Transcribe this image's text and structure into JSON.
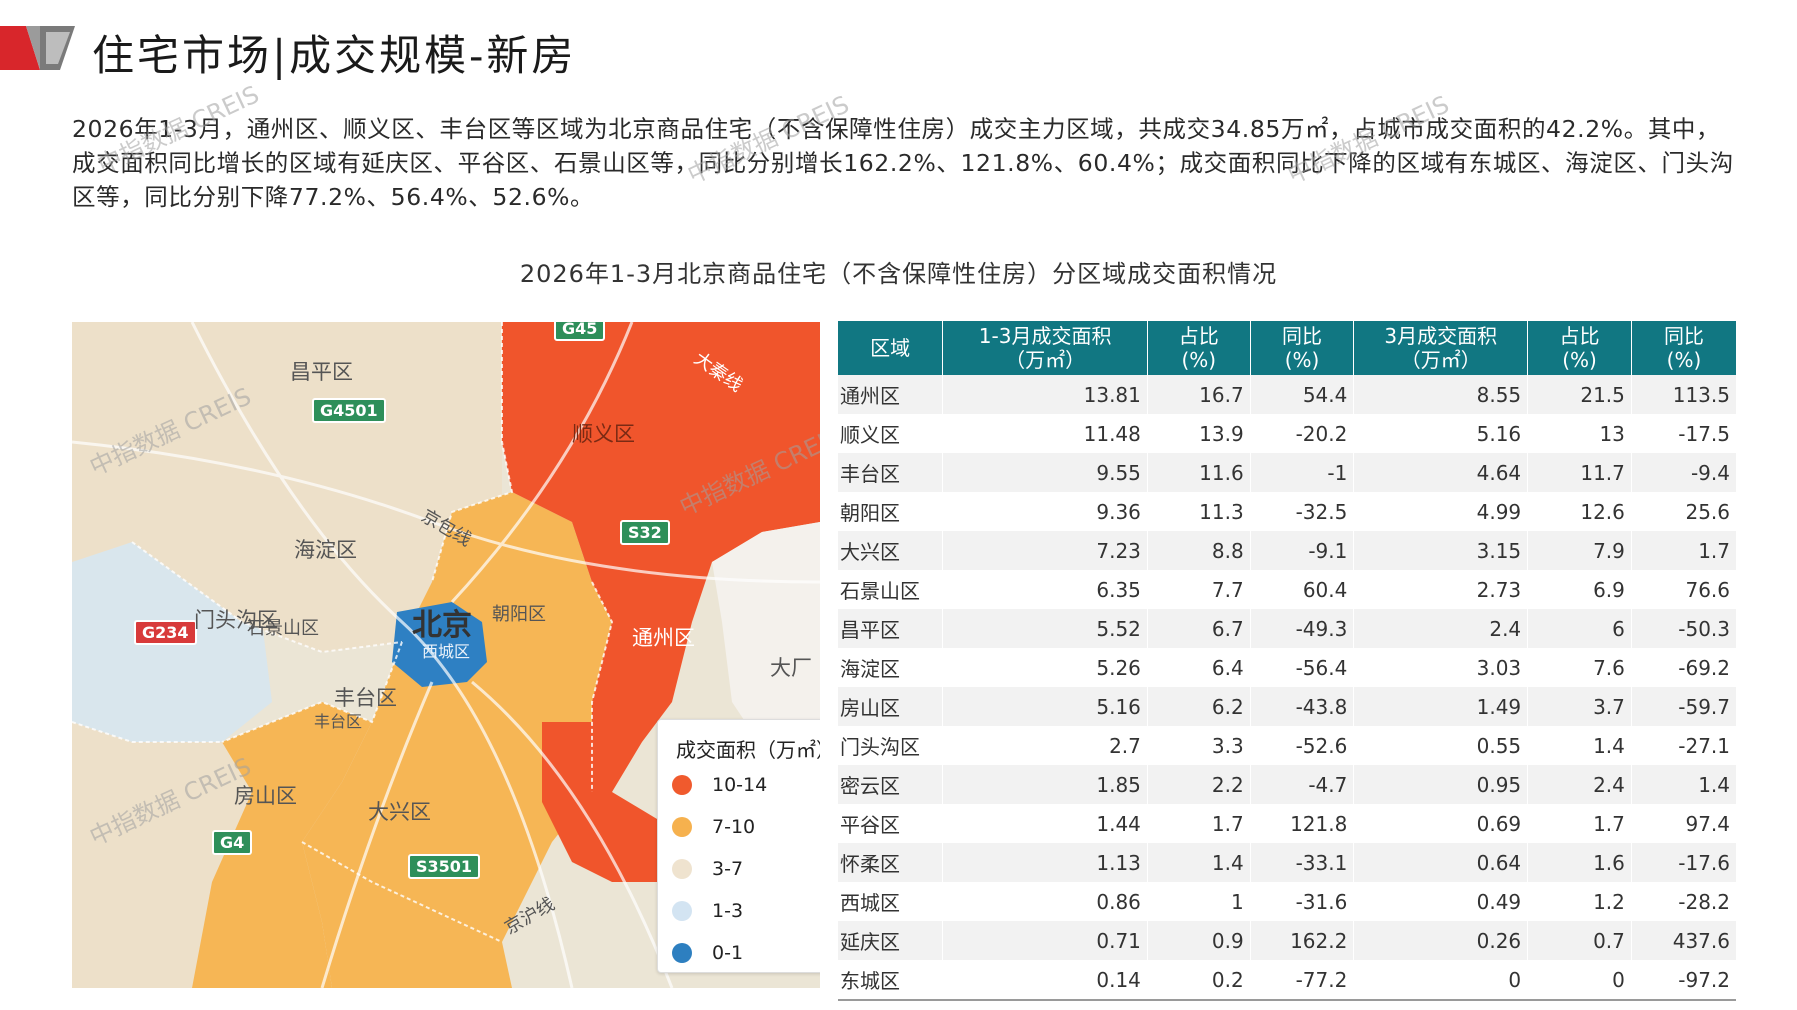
{
  "header": {
    "title": "住宅市场|成交规模-新房"
  },
  "summary": "2026年1-3月，通州区、顺义区、丰台区等区域为北京商品住宅（不含保障性住房）成交主力区域，共成交34.85万㎡，占城市成交面积的42.2%。其中，成交面积同比增长的区域有延庆区、平谷区、石景山区等，同比分别增长162.2%、121.8%、60.4%；成交面积同比下降的区域有东城区、海淀区、门头沟区等，同比分别下降77.2%、56.4%、52.6%。",
  "chart_title": "2026年1-3月北京商品住宅（不含保障性住房）分区域成交面积情况",
  "watermark": "中指数据 CREIS",
  "map": {
    "labels": {
      "changping": "昌平区",
      "shunyi": "顺义区",
      "haidian": "海淀区",
      "mentougou": "门头沟区",
      "shijingshan": "石景山区",
      "beijing": "北京",
      "xicheng": "西城区",
      "chaoyang": "朝阳区",
      "tongzhou": "通州区",
      "fengtai": "丰台区",
      "fengtai_small": "丰台区",
      "fangshan": "房山区",
      "daxing": "大兴区",
      "dachang": "大厂",
      "jingbao": "京包线",
      "jinghu": "京沪线",
      "daqin": "大秦线"
    },
    "shields": {
      "g45": "G45",
      "g4501": "G4501",
      "s32": "S32",
      "g234": "G234",
      "g4": "G4",
      "s3501": "S3501"
    },
    "legend": {
      "title": "成交面积（万㎡）",
      "items": [
        {
          "label": "10-14",
          "color": "#f05a2d"
        },
        {
          "label": "7-10",
          "color": "#f6b14e"
        },
        {
          "label": "3-7",
          "color": "#efe3cf"
        },
        {
          "label": "1-3",
          "color": "#d3e4f2"
        },
        {
          "label": "0-1",
          "color": "#2d7fc0"
        }
      ]
    },
    "colors": {
      "high": "#f0552c",
      "mid": "#f6b655",
      "low": "#ede0c9",
      "light_blue": "#d7e5f0",
      "core": "#2e80c3"
    }
  },
  "table": {
    "headers": [
      {
        "line1": "区域",
        "line2": ""
      },
      {
        "line1": "1-3月成交面积",
        "line2": "（万㎡）"
      },
      {
        "line1": "占比",
        "line2": "(%)"
      },
      {
        "line1": "同比",
        "line2": "(%)"
      },
      {
        "line1": "3月成交面积",
        "line2": "（万㎡）"
      },
      {
        "line1": "占比",
        "line2": "(%)"
      },
      {
        "line1": "同比",
        "line2": "(%)"
      }
    ],
    "rows": [
      [
        "通州区",
        "13.81",
        "16.7",
        "54.4",
        "8.55",
        "21.5",
        "113.5"
      ],
      [
        "顺义区",
        "11.48",
        "13.9",
        "-20.2",
        "5.16",
        "13",
        "-17.5"
      ],
      [
        "丰台区",
        "9.55",
        "11.6",
        "-1",
        "4.64",
        "11.7",
        "-9.4"
      ],
      [
        "朝阳区",
        "9.36",
        "11.3",
        "-32.5",
        "4.99",
        "12.6",
        "25.6"
      ],
      [
        "大兴区",
        "7.23",
        "8.8",
        "-9.1",
        "3.15",
        "7.9",
        "1.7"
      ],
      [
        "石景山区",
        "6.35",
        "7.7",
        "60.4",
        "2.73",
        "6.9",
        "76.6"
      ],
      [
        "昌平区",
        "5.52",
        "6.7",
        "-49.3",
        "2.4",
        "6",
        "-50.3"
      ],
      [
        "海淀区",
        "5.26",
        "6.4",
        "-56.4",
        "3.03",
        "7.6",
        "-69.2"
      ],
      [
        "房山区",
        "5.16",
        "6.2",
        "-43.8",
        "1.49",
        "3.7",
        "-59.7"
      ],
      [
        "门头沟区",
        "2.7",
        "3.3",
        "-52.6",
        "0.55",
        "1.4",
        "-27.1"
      ],
      [
        "密云区",
        "1.85",
        "2.2",
        "-4.7",
        "0.95",
        "2.4",
        "1.4"
      ],
      [
        "平谷区",
        "1.44",
        "1.7",
        "121.8",
        "0.69",
        "1.7",
        "97.4"
      ],
      [
        "怀柔区",
        "1.13",
        "1.4",
        "-33.1",
        "0.64",
        "1.6",
        "-17.6"
      ],
      [
        "西城区",
        "0.86",
        "1",
        "-31.6",
        "0.49",
        "1.2",
        "-28.2"
      ],
      [
        "延庆区",
        "0.71",
        "0.9",
        "162.2",
        "0.26",
        "0.7",
        "437.6"
      ],
      [
        "东城区",
        "0.14",
        "0.2",
        "-77.2",
        "0",
        "0",
        "-97.2"
      ]
    ]
  }
}
